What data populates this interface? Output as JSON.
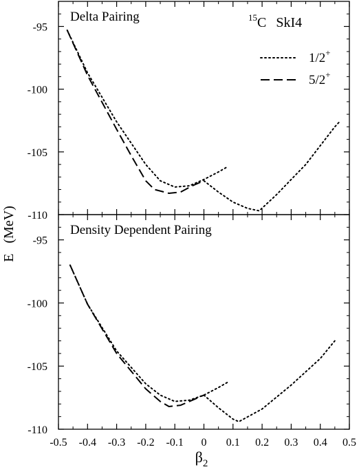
{
  "figure": {
    "ylabel_letter": "E",
    "ylabel_unit": "(MeV)",
    "xlabel_symbol": "β",
    "xlabel_sub": "2"
  },
  "chart_data": [
    {
      "type": "line",
      "title": "Delta Pairing",
      "annotation": {
        "nucleus_mass": "15",
        "nucleus_symbol": "C",
        "force": "SkI4"
      },
      "xlim": [
        -0.5,
        0.5
      ],
      "ylim": [
        -110,
        -93
      ],
      "xticks": [
        -0.5,
        -0.4,
        -0.3,
        -0.2,
        -0.1,
        0,
        0.1,
        0.2,
        0.3,
        0.4,
        0.5
      ],
      "yticks": [
        -95,
        -100,
        -105,
        -110
      ],
      "ytick_labels": [
        "-95",
        "-100",
        "-105",
        "-110"
      ],
      "legend": {
        "placement": "top-right",
        "entries": [
          {
            "label": "1/2",
            "sup": "+",
            "style": "dotted"
          },
          {
            "label": "5/2",
            "sup": "+",
            "style": "dashed"
          }
        ]
      },
      "series": [
        {
          "name": "1/2+",
          "style": "dotted",
          "segments": [
            {
              "x": [
                -0.47,
                -0.4,
                -0.3,
                -0.2,
                -0.15,
                -0.1,
                -0.05,
                0.0,
                0.05,
                0.08
              ],
              "y": [
                -95.3,
                -98.7,
                -102.6,
                -106.0,
                -107.3,
                -107.8,
                -107.7,
                -107.2,
                -106.6,
                -106.2
              ]
            },
            {
              "x": [
                0.0,
                0.05,
                0.1,
                0.15,
                0.19,
                0.25,
                0.3,
                0.35,
                0.4,
                0.45,
                0.47
              ],
              "y": [
                -107.3,
                -108.2,
                -109.0,
                -109.5,
                -109.7,
                -108.4,
                -107.2,
                -106.0,
                -104.5,
                -103.0,
                -102.5
              ]
            }
          ]
        },
        {
          "name": "5/2+",
          "style": "dashed",
          "segments": [
            {
              "x": [
                -0.47,
                -0.4,
                -0.3,
                -0.25,
                -0.2,
                -0.17,
                -0.12,
                -0.08,
                -0.04,
                0.0
              ],
              "y": [
                -95.3,
                -98.9,
                -103.2,
                -105.3,
                -107.3,
                -108.0,
                -108.3,
                -108.2,
                -107.7,
                -107.3
              ]
            }
          ]
        }
      ]
    },
    {
      "type": "line",
      "title": "Density Dependent Pairing",
      "xlim": [
        -0.5,
        0.5
      ],
      "ylim": [
        -110,
        -93
      ],
      "xticks": [
        -0.5,
        -0.4,
        -0.3,
        -0.2,
        -0.1,
        0,
        0.1,
        0.2,
        0.3,
        0.4,
        0.5
      ],
      "xtick_labels": [
        "-0.5",
        "-0.4",
        "-0.3",
        "-0.2",
        "-0.1",
        "0",
        "0.1",
        "0.2",
        "0.3",
        "0.4",
        "0.5"
      ],
      "yticks": [
        -95,
        -100,
        -105,
        -110
      ],
      "ytick_labels": [
        "-95",
        "-100",
        "-105",
        "-110"
      ],
      "series": [
        {
          "name": "1/2+",
          "style": "dotted",
          "segments": [
            {
              "x": [
                -0.46,
                -0.4,
                -0.3,
                -0.2,
                -0.15,
                -0.1,
                -0.05,
                0.0,
                0.05,
                0.08
              ],
              "y": [
                -97.0,
                -100.1,
                -103.8,
                -106.4,
                -107.3,
                -107.8,
                -107.7,
                -107.3,
                -106.7,
                -106.3
              ]
            },
            {
              "x": [
                0.0,
                0.05,
                0.1,
                0.12,
                0.2,
                0.3,
                0.4,
                0.45
              ],
              "y": [
                -107.3,
                -108.3,
                -109.2,
                -109.4,
                -108.4,
                -106.5,
                -104.4,
                -103.0
              ]
            }
          ]
        },
        {
          "name": "5/2+",
          "style": "dashed",
          "segments": [
            {
              "x": [
                -0.46,
                -0.4,
                -0.3,
                -0.2,
                -0.15,
                -0.12,
                -0.08,
                -0.04,
                0.0
              ],
              "y": [
                -97.0,
                -100.1,
                -104.0,
                -106.8,
                -107.8,
                -108.2,
                -108.1,
                -107.7,
                -107.3
              ]
            }
          ]
        }
      ]
    }
  ]
}
